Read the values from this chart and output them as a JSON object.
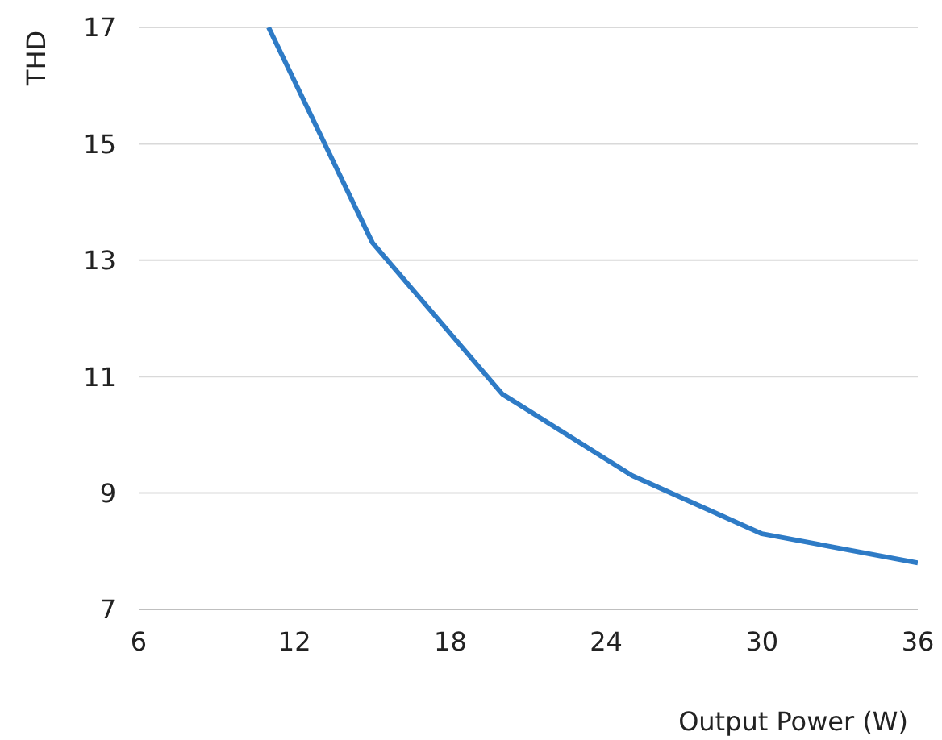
{
  "chart_data": {
    "type": "line",
    "xlabel": "Output Power (W)",
    "ylabel": "THD",
    "x": [
      11,
      15,
      20,
      25,
      30,
      36
    ],
    "series": [
      {
        "color": "#2e7bc6",
        "values": [
          17,
          13.3,
          10.7,
          9.3,
          8.3,
          7.8
        ]
      }
    ],
    "xlim": [
      6,
      36
    ],
    "xticks": [
      6,
      12,
      18,
      24,
      30,
      36
    ],
    "ylim": [
      7,
      17
    ],
    "yticks": [
      7,
      9,
      11,
      13,
      15,
      17
    ],
    "grid": "y",
    "legend": false,
    "marker": "none",
    "line_style": "solid"
  }
}
